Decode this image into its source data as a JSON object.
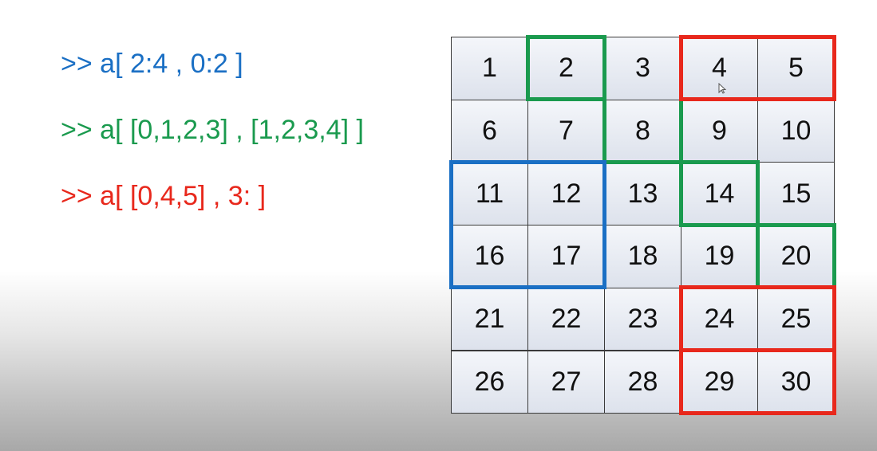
{
  "code": {
    "lines": [
      {
        "text": ">> a[ 2:4 , 0:2 ]",
        "color": "#1a6fc4"
      },
      {
        "text": ">> a[ [0,1,2,3] , [1,2,3,4] ]",
        "color": "#1a9a4e"
      },
      {
        "text": ">> a[ [0,4,5] , 3: ]",
        "color": "#e8281c"
      }
    ]
  },
  "matrix": {
    "rows": 6,
    "cols": 5,
    "values": [
      [
        "1",
        "2",
        "3",
        "4",
        "5"
      ],
      [
        "6",
        "7",
        "8",
        "9",
        "10"
      ],
      [
        "11",
        "12",
        "13",
        "14",
        "15"
      ],
      [
        "16",
        "17",
        "18",
        "19",
        "20"
      ],
      [
        "21",
        "22",
        "23",
        "24",
        "25"
      ],
      [
        "26",
        "27",
        "28",
        "29",
        "30"
      ]
    ]
  },
  "highlights": {
    "blue": {
      "color": "#1a6fc4",
      "rows": [
        2,
        3
      ],
      "cols": [
        0,
        1
      ]
    },
    "green": {
      "color": "#1a9a4e",
      "cells": [
        [
          0,
          1
        ],
        [
          1,
          2
        ],
        [
          2,
          3
        ],
        [
          3,
          4
        ]
      ]
    },
    "red": {
      "color": "#e8281c",
      "rows": [
        0,
        4,
        5
      ],
      "cols": [
        3,
        4
      ]
    }
  }
}
